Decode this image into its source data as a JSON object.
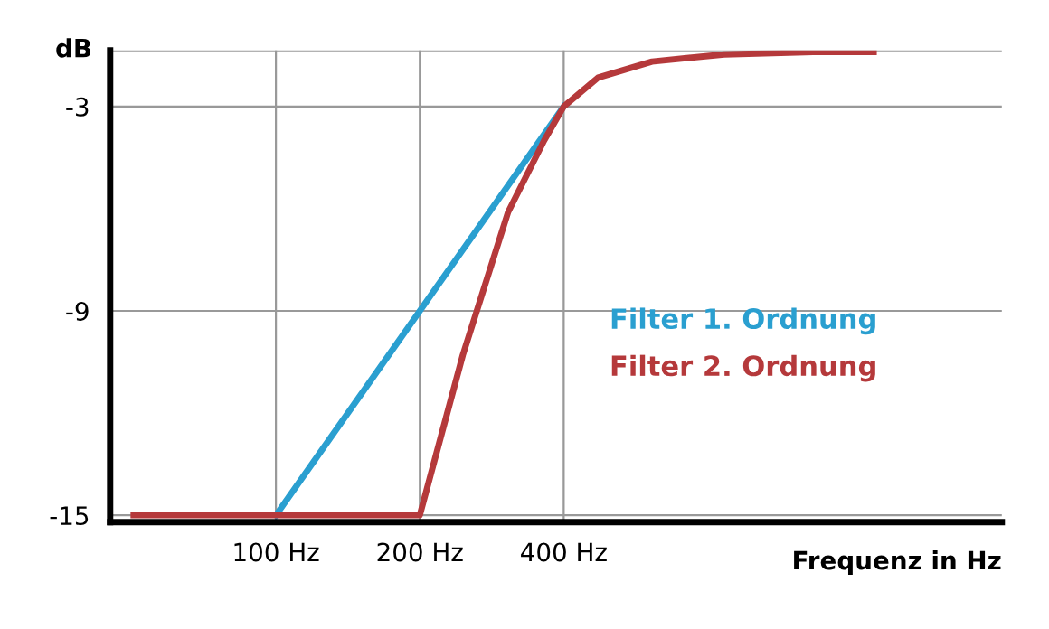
{
  "chart_data": {
    "type": "line",
    "ylabel": "dB",
    "xlabel": "Frequenz in Hz",
    "log": "x",
    "xlim": [
      45,
      3300
    ],
    "xticks": [
      {
        "value": 100,
        "label": "100 Hz"
      },
      {
        "value": 200,
        "label": "200 Hz"
      },
      {
        "value": 400,
        "label": "400 Hz"
      }
    ],
    "ylim": [
      -15.2,
      -1.35
    ],
    "yticks": [
      -3,
      -9,
      -15
    ],
    "grid": true,
    "marker": "none",
    "line_style": "solid",
    "series": [
      {
        "name": "Filter 1. Ordnung",
        "color": "#2a9fd0",
        "x": [
          100,
          400
        ],
        "values": [
          -15,
          -3
        ]
      },
      {
        "name": "Filter 2. Ordnung",
        "color": "#b5393b",
        "x": [
          50.4,
          200,
          246,
          306,
          364,
          400,
          472,
          612,
          866,
          1330,
          1780
        ],
        "values": [
          -15,
          -15,
          -10.3,
          -6.1,
          -4.0,
          -3,
          -2.15,
          -1.68,
          -1.47,
          -1.4,
          -1.4
        ]
      }
    ]
  }
}
